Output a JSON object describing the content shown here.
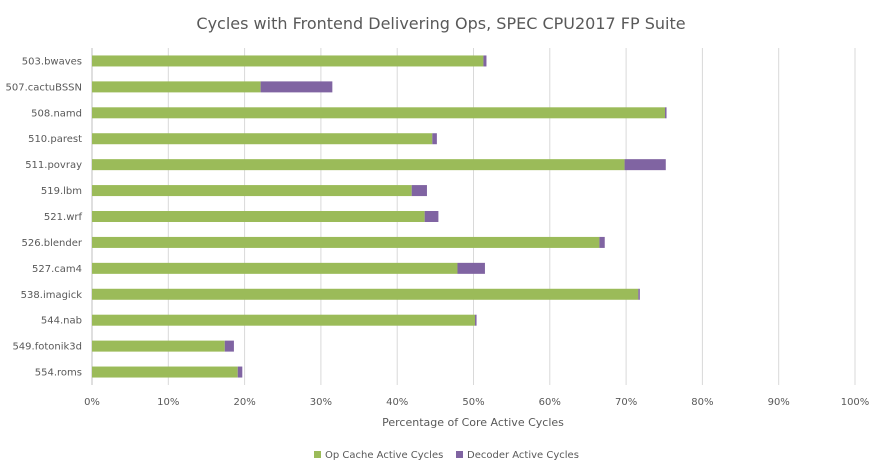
{
  "chart_data": {
    "type": "bar",
    "orientation": "horizontal",
    "stacked": true,
    "title": "Cycles with Frontend Delivering Ops, SPEC CPU2017 FP Suite",
    "xlabel": "Percentage of Core Active Cycles",
    "ylabel": "",
    "xlim": [
      0,
      100
    ],
    "x_ticks": [
      "0%",
      "10%",
      "20%",
      "30%",
      "40%",
      "50%",
      "60%",
      "70%",
      "80%",
      "90%",
      "100%"
    ],
    "grid": true,
    "legend_position": "bottom",
    "categories": [
      "503.bwaves",
      "507.cactuBSSN",
      "508.namd",
      "510.parest",
      "511.povray",
      "519.lbm",
      "521.wrf",
      "526.blender",
      "527.cam4",
      "538.imagick",
      "544.nab",
      "549.fotonik3d",
      "554.roms"
    ],
    "series": [
      {
        "name": "Op Cache Active Cycles",
        "color": "#9bbb59",
        "values": [
          51.3,
          22.1,
          75.1,
          44.6,
          69.8,
          41.9,
          43.6,
          66.5,
          47.9,
          71.6,
          50.2,
          17.4,
          19.1
        ]
      },
      {
        "name": "Decoder Active Cycles",
        "color": "#8064a2",
        "values": [
          0.4,
          9.4,
          0.2,
          0.6,
          5.4,
          2.0,
          1.8,
          0.7,
          3.6,
          0.2,
          0.2,
          1.2,
          0.6
        ]
      }
    ]
  }
}
